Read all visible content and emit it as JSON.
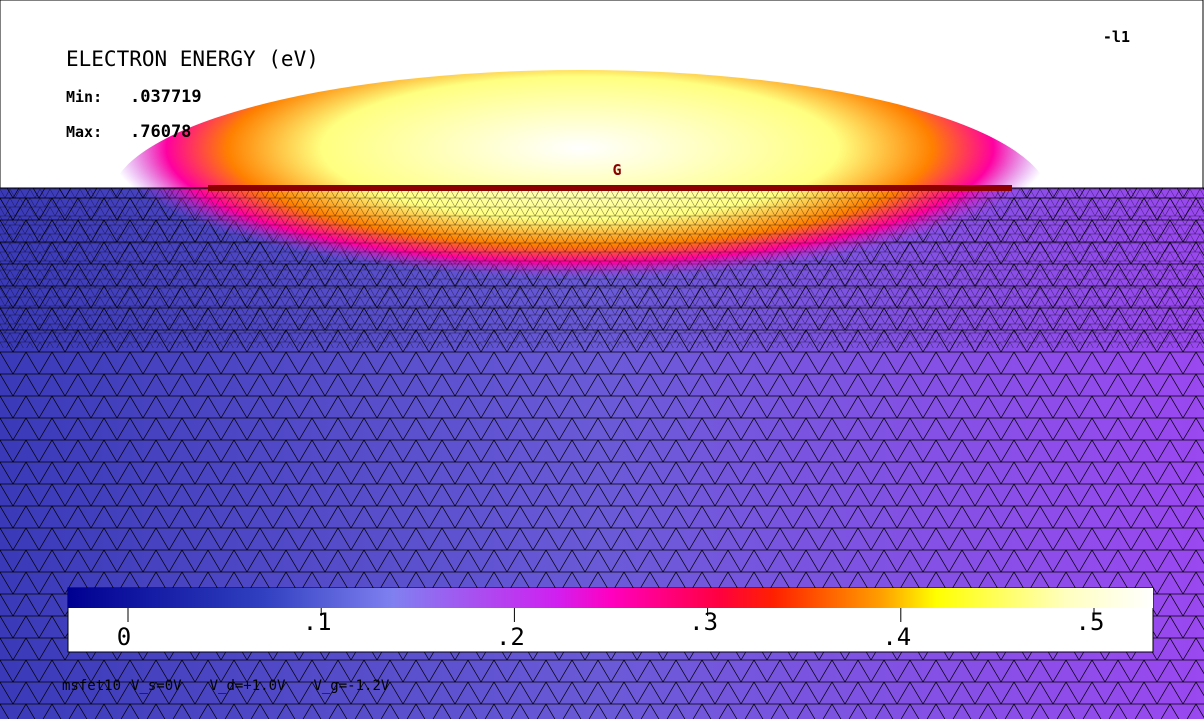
{
  "header": {
    "title": "ELECTRON ENERGY (eV)",
    "min_label": "Min:",
    "min_value": ".037719",
    "max_label": "Max:",
    "max_value": ".76078",
    "corner": "-l1"
  },
  "gate_label": "G",
  "colorbar": {
    "range": [
      0,
      0.5
    ],
    "ticks": [
      {
        "value": 0,
        "label": "0"
      },
      {
        "value": 0.1,
        "label": ".1"
      },
      {
        "value": 0.2,
        "label": ".2"
      },
      {
        "value": 0.3,
        "label": ".3"
      },
      {
        "value": 0.4,
        "label": ".4"
      },
      {
        "value": 0.5,
        "label": ".5"
      }
    ]
  },
  "footer": [
    "msfet10",
    "V_s=0V",
    "V_d=+1.0V",
    "V_g=-1.2V"
  ]
}
